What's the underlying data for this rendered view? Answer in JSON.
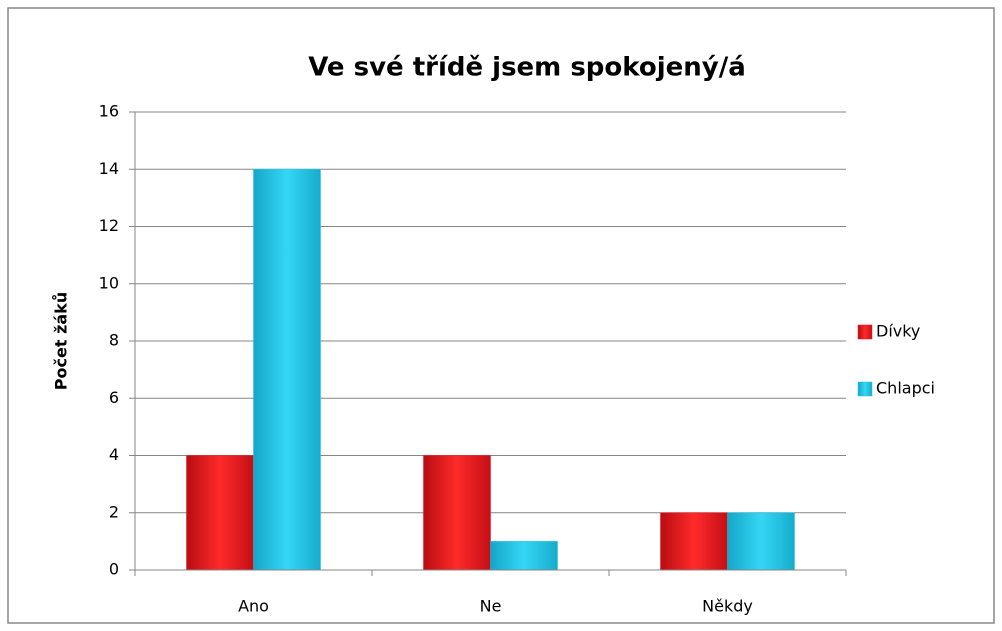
{
  "chart_data": {
    "type": "bar",
    "title": "Ve své třídě jsem spokojený/á",
    "y_label": "Počet žáků",
    "categories": [
      "Ano",
      "Ne",
      "Někdy"
    ],
    "series": [
      {
        "name": "Dívky",
        "color": "#e8141c",
        "values": [
          4,
          4,
          2
        ]
      },
      {
        "name": "Chlapci",
        "color": "#1fc4e8",
        "values": [
          14,
          1,
          2
        ]
      }
    ],
    "ylim": [
      0,
      16
    ],
    "yticks": [
      0,
      2,
      4,
      6,
      8,
      10,
      12,
      14,
      16
    ],
    "grid": true,
    "legend": "right"
  }
}
